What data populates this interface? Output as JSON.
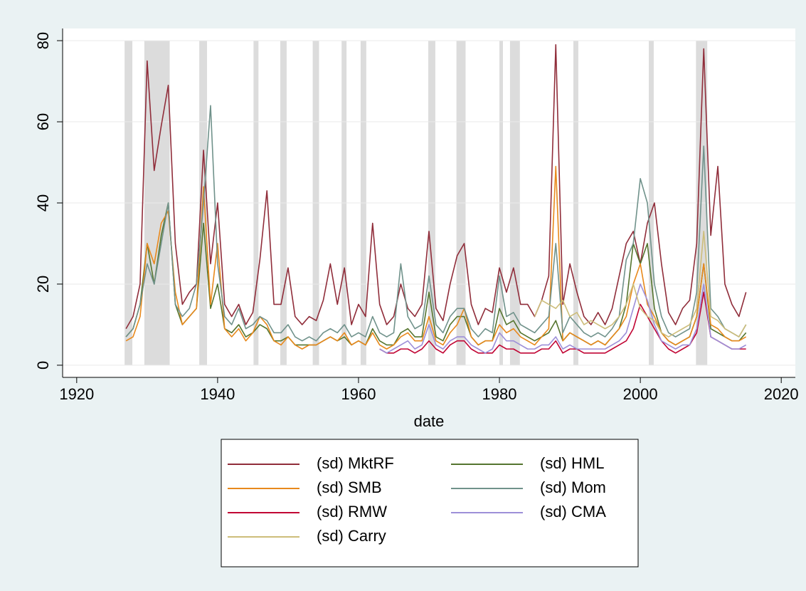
{
  "chart_data": {
    "type": "line",
    "x_label": "date",
    "x": [
      1927,
      1928,
      1929,
      1930,
      1931,
      1932,
      1933,
      1934,
      1935,
      1936,
      1937,
      1938,
      1939,
      1940,
      1941,
      1942,
      1943,
      1944,
      1945,
      1946,
      1947,
      1948,
      1949,
      1950,
      1951,
      1952,
      1953,
      1954,
      1955,
      1956,
      1957,
      1958,
      1959,
      1960,
      1961,
      1962,
      1963,
      1964,
      1965,
      1966,
      1967,
      1968,
      1969,
      1970,
      1971,
      1972,
      1973,
      1974,
      1975,
      1976,
      1977,
      1978,
      1979,
      1980,
      1981,
      1982,
      1983,
      1984,
      1985,
      1986,
      1987,
      1988,
      1989,
      1990,
      1991,
      1992,
      1993,
      1994,
      1995,
      1996,
      1997,
      1998,
      1999,
      2000,
      2001,
      2002,
      2003,
      2004,
      2005,
      2006,
      2007,
      2008,
      2009,
      2010,
      2011,
      2012,
      2013,
      2014,
      2015
    ],
    "series": [
      {
        "name": "(sd) MktRF",
        "color": "#902d3a",
        "values": [
          9,
          12,
          20,
          75,
          48,
          59,
          69,
          30,
          15,
          18,
          20,
          53,
          25,
          40,
          15,
          12,
          15,
          10,
          13,
          26,
          43,
          15,
          15,
          24,
          12,
          10,
          12,
          11,
          16,
          25,
          15,
          24,
          10,
          15,
          12,
          35,
          15,
          10,
          12,
          20,
          14,
          12,
          15,
          33,
          14,
          11,
          20,
          27,
          30,
          15,
          10,
          14,
          13,
          24,
          18,
          24,
          15,
          15,
          12,
          16,
          22,
          79,
          15,
          25,
          18,
          12,
          10,
          13,
          10,
          14,
          22,
          30,
          33,
          25,
          35,
          40,
          25,
          13,
          10,
          14,
          16,
          30,
          78,
          32,
          49,
          20,
          15,
          12,
          18
        ]
      },
      {
        "name": "(sd) HML",
        "color": "#55752f",
        "values": [
          7,
          9,
          15,
          30,
          20,
          32,
          40,
          15,
          10,
          12,
          14,
          35,
          14,
          20,
          9,
          8,
          10,
          7,
          8,
          10,
          9,
          6,
          6,
          7,
          5,
          5,
          5,
          5,
          6,
          7,
          6,
          7,
          5,
          6,
          5,
          9,
          6,
          5,
          5,
          8,
          9,
          7,
          7,
          18,
          7,
          6,
          10,
          12,
          12,
          7,
          5,
          6,
          6,
          14,
          10,
          11,
          8,
          7,
          6,
          7,
          8,
          11,
          6,
          8,
          7,
          6,
          5,
          6,
          5,
          7,
          9,
          15,
          30,
          25,
          30,
          14,
          8,
          6,
          5,
          6,
          7,
          12,
          25,
          9,
          8,
          7,
          6,
          6,
          8
        ]
      },
      {
        "name": "(sd) SMB",
        "color": "#e8891c",
        "values": [
          6,
          7,
          12,
          30,
          25,
          35,
          38,
          18,
          10,
          12,
          14,
          44,
          15,
          30,
          9,
          7,
          9,
          6,
          8,
          12,
          10,
          6,
          5,
          7,
          5,
          4,
          5,
          5,
          6,
          7,
          6,
          8,
          5,
          6,
          5,
          8,
          5,
          4,
          5,
          7,
          8,
          6,
          6,
          12,
          6,
          5,
          8,
          10,
          14,
          7,
          5,
          6,
          6,
          10,
          8,
          9,
          7,
          6,
          5,
          7,
          9,
          49,
          6,
          8,
          7,
          6,
          5,
          6,
          5,
          7,
          9,
          12,
          20,
          25,
          15,
          12,
          8,
          6,
          5,
          6,
          7,
          12,
          25,
          10,
          9,
          7,
          6,
          6,
          7
        ]
      },
      {
        "name": "(sd) Mom",
        "color": "#70928b",
        "values": [
          7,
          9,
          15,
          25,
          20,
          30,
          40,
          15,
          12,
          14,
          20,
          40,
          64,
          25,
          12,
          10,
          14,
          9,
          10,
          12,
          11,
          8,
          8,
          10,
          7,
          6,
          7,
          6,
          8,
          9,
          8,
          10,
          7,
          8,
          7,
          12,
          8,
          7,
          8,
          25,
          12,
          9,
          10,
          22,
          10,
          8,
          12,
          14,
          14,
          9,
          7,
          9,
          8,
          22,
          12,
          13,
          10,
          9,
          8,
          10,
          12,
          30,
          8,
          12,
          10,
          8,
          7,
          8,
          7,
          9,
          12,
          26,
          30,
          46,
          40,
          20,
          12,
          8,
          7,
          8,
          9,
          18,
          54,
          14,
          12,
          9,
          8,
          7,
          10
        ]
      },
      {
        "name": "(sd) RMW",
        "color": "#c10534",
        "values": [
          null,
          null,
          null,
          null,
          null,
          null,
          null,
          null,
          null,
          null,
          null,
          null,
          null,
          null,
          null,
          null,
          null,
          null,
          null,
          null,
          null,
          null,
          null,
          null,
          null,
          null,
          null,
          null,
          null,
          null,
          null,
          null,
          null,
          null,
          null,
          null,
          4,
          3,
          3,
          4,
          4,
          3,
          4,
          6,
          4,
          3,
          5,
          6,
          6,
          4,
          3,
          3,
          3,
          5,
          4,
          4,
          3,
          3,
          3,
          4,
          4,
          6,
          3,
          4,
          4,
          3,
          3,
          3,
          3,
          4,
          5,
          6,
          9,
          15,
          12,
          9,
          6,
          4,
          3,
          4,
          5,
          8,
          18,
          7,
          6,
          5,
          4,
          4,
          4
        ]
      },
      {
        "name": "(sd) CMA",
        "color": "#9d8fd8",
        "values": [
          null,
          null,
          null,
          null,
          null,
          null,
          null,
          null,
          null,
          null,
          null,
          null,
          null,
          null,
          null,
          null,
          null,
          null,
          null,
          null,
          null,
          null,
          null,
          null,
          null,
          null,
          null,
          null,
          null,
          null,
          null,
          null,
          null,
          null,
          null,
          null,
          4,
          3,
          4,
          5,
          6,
          4,
          5,
          10,
          5,
          4,
          6,
          7,
          7,
          5,
          4,
          3,
          4,
          8,
          6,
          6,
          5,
          4,
          4,
          5,
          5,
          7,
          4,
          5,
          4,
          4,
          4,
          4,
          4,
          5,
          6,
          8,
          14,
          20,
          16,
          10,
          6,
          5,
          4,
          5,
          5,
          9,
          20,
          7,
          6,
          5,
          4,
          4,
          5
        ]
      },
      {
        "name": "(sd) Carry",
        "color": "#cdbd7a",
        "values": [
          null,
          null,
          null,
          null,
          null,
          null,
          null,
          null,
          null,
          null,
          null,
          null,
          null,
          null,
          null,
          null,
          null,
          null,
          null,
          null,
          null,
          null,
          null,
          null,
          null,
          null,
          null,
          null,
          null,
          null,
          null,
          null,
          null,
          null,
          null,
          null,
          null,
          null,
          null,
          null,
          null,
          null,
          null,
          null,
          null,
          null,
          null,
          null,
          null,
          null,
          null,
          null,
          null,
          null,
          null,
          null,
          null,
          null,
          12,
          16,
          15,
          14,
          16,
          12,
          13,
          10,
          11,
          10,
          9,
          10,
          12,
          15,
          20,
          14,
          12,
          11,
          8,
          7,
          8,
          9,
          10,
          14,
          33,
          12,
          11,
          9,
          8,
          7,
          10
        ]
      }
    ],
    "shaded_ranges": [
      [
        1926.8,
        1927.9
      ],
      [
        1929.6,
        1933.2
      ],
      [
        1937.4,
        1938.5
      ],
      [
        1945.1,
        1945.8
      ],
      [
        1948.9,
        1949.8
      ],
      [
        1953.5,
        1954.4
      ],
      [
        1957.6,
        1958.3
      ],
      [
        1960.3,
        1961.1
      ],
      [
        1969.9,
        1970.9
      ],
      [
        1973.9,
        1975.2
      ],
      [
        1980.0,
        1980.5
      ],
      [
        1981.5,
        1982.9
      ],
      [
        1990.5,
        1991.2
      ],
      [
        2001.2,
        2001.9
      ],
      [
        2007.9,
        2009.5
      ]
    ],
    "shade_color": "#dcdcdc",
    "xlim": [
      1918,
      2022
    ],
    "ylim": [
      -3,
      83
    ],
    "xticks": [
      1920,
      1940,
      1960,
      1980,
      2000,
      2020
    ],
    "yticks": [
      0,
      20,
      40,
      60,
      80
    ],
    "grid": true,
    "legend_columns": 2
  }
}
